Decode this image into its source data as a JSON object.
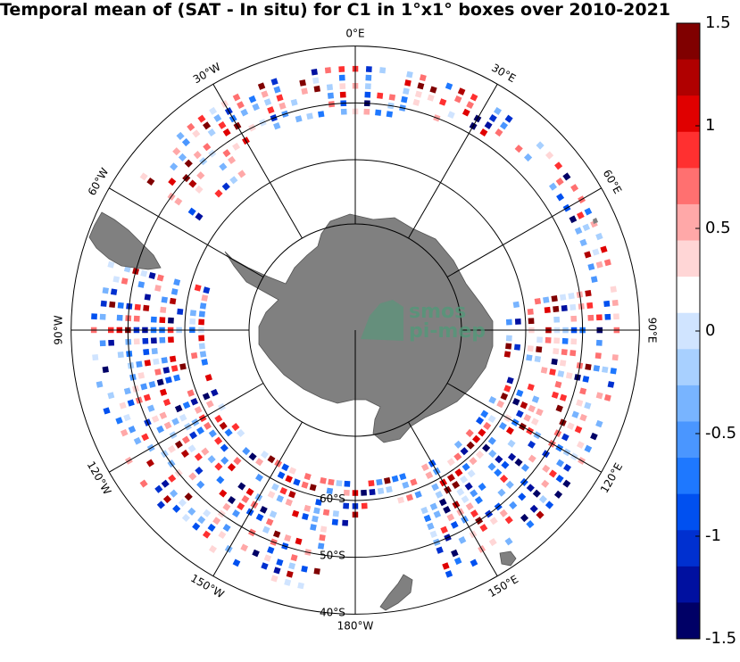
{
  "title": "Temporal mean of (SAT - In situ) for C1 in 1°x1° boxes over 2010-2021",
  "map": {
    "projection": "south-polar-stereographic",
    "longitude_labels": [
      {
        "key": "0E",
        "text": "0°E",
        "lon": 0
      },
      {
        "key": "30E",
        "text": "30°E",
        "lon": 30
      },
      {
        "key": "60E",
        "text": "60°E",
        "lon": 60
      },
      {
        "key": "90E",
        "text": "90°E",
        "lon": 90
      },
      {
        "key": "120E",
        "text": "120°E",
        "lon": 120
      },
      {
        "key": "150E",
        "text": "150°E",
        "lon": 150
      },
      {
        "key": "180W",
        "text": "180°W",
        "lon": 180
      },
      {
        "key": "150W",
        "text": "150°W",
        "lon": -150
      },
      {
        "key": "120W",
        "text": "120°W",
        "lon": -120
      },
      {
        "key": "90W",
        "text": "90°W",
        "lon": -90
      },
      {
        "key": "60W",
        "text": "60°W",
        "lon": -60
      },
      {
        "key": "30W",
        "text": "30°W",
        "lon": -30
      }
    ],
    "latitude_labels": [
      {
        "key": "60S",
        "text": "60°S",
        "lat": -60
      },
      {
        "key": "50S",
        "text": "50°S",
        "lat": -50
      },
      {
        "key": "40S",
        "text": "40°S",
        "lat": -40
      }
    ],
    "colors": {
      "land": "#808080",
      "grid": "#000000",
      "background": "#ffffff"
    }
  },
  "colorbar": {
    "min": -1.5,
    "max": 1.5,
    "ticks": [
      {
        "value": 1.5,
        "text": "1.5"
      },
      {
        "value": 1,
        "text": "1"
      },
      {
        "value": 0.5,
        "text": "0.5"
      },
      {
        "value": 0,
        "text": "0"
      },
      {
        "value": -0.5,
        "text": "-0.5"
      },
      {
        "value": -1,
        "text": "-1"
      },
      {
        "value": -1.5,
        "text": "-1.5"
      }
    ],
    "colors": [
      "#000066",
      "#0010a0",
      "#0030d0",
      "#0050f0",
      "#1e78ff",
      "#4a96ff",
      "#78b4ff",
      "#a8d0ff",
      "#d0e4ff",
      "#ffffff",
      "#ffd6d6",
      "#ffa8a8",
      "#ff7070",
      "#ff3030",
      "#e00000",
      "#b00000",
      "#800000"
    ]
  },
  "watermark": {
    "line1": "smos",
    "line2": "pi-mep"
  }
}
